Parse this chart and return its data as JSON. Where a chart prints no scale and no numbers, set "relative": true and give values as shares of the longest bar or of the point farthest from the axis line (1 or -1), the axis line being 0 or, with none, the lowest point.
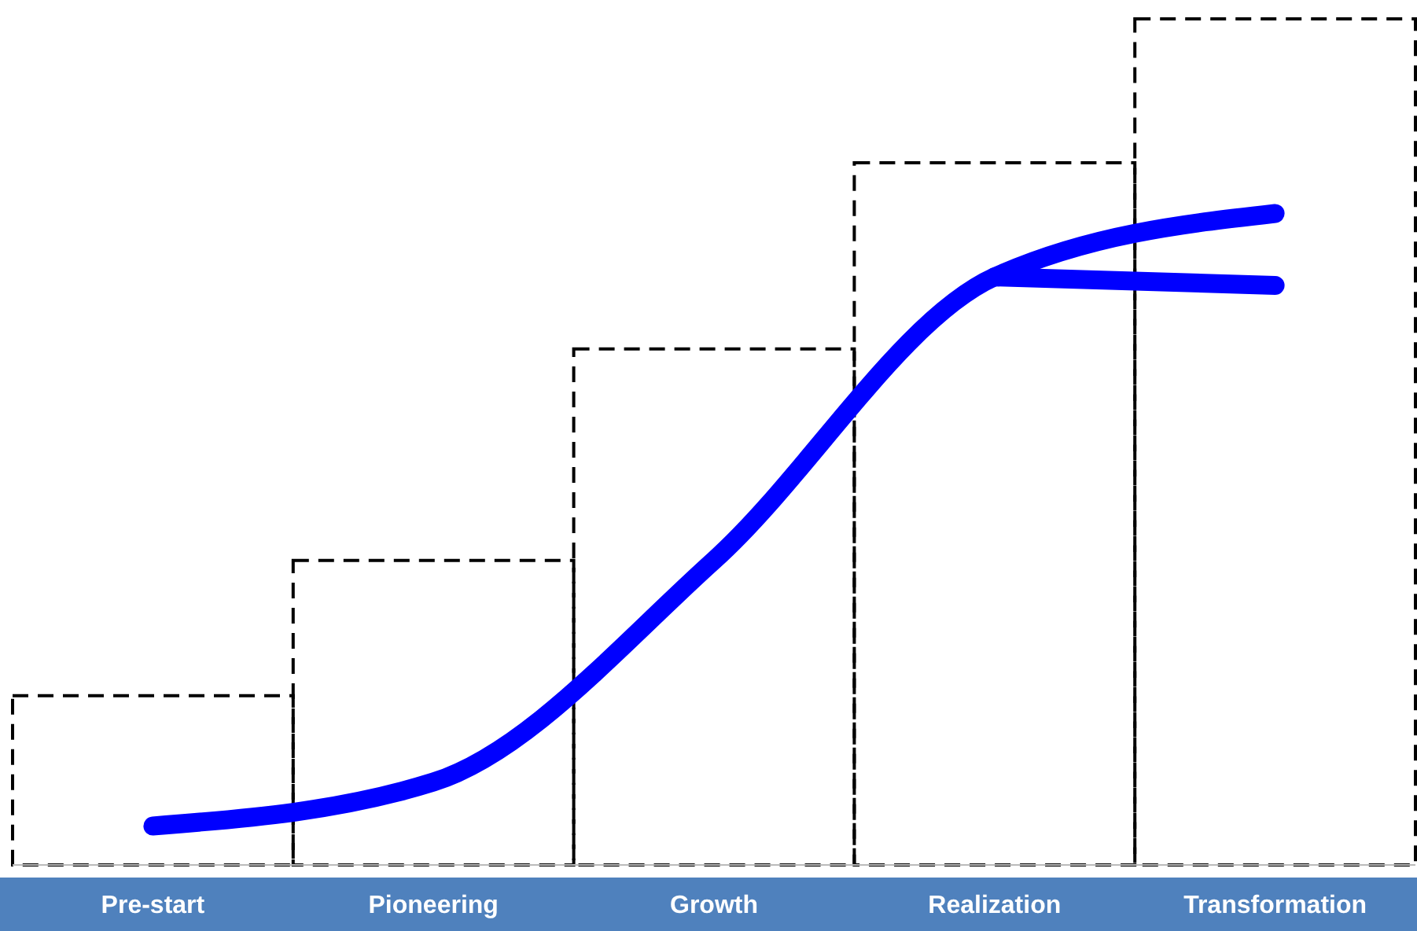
{
  "chart_data": {
    "type": "bar",
    "relative": true,
    "categories": [
      "Pre-start",
      "Pioneering",
      "Growth",
      "Realization",
      "Transformation"
    ],
    "series": [
      {
        "color": "#000000",
        "line_style": "dashed",
        "values": [
          0.2,
          0.36,
          0.61,
          0.83,
          1
        ]
      },
      {
        "type": "line",
        "color": "#0000ff",
        "line_style": "solid",
        "values": [
          0.046,
          0.098,
          0.36,
          0.695,
          0.77
        ]
      },
      {
        "type": "line",
        "color": "#0000ff",
        "line_style": "solid",
        "values": [
          null,
          null,
          null,
          0.695,
          0.685
        ]
      }
    ],
    "grid": false
  }
}
